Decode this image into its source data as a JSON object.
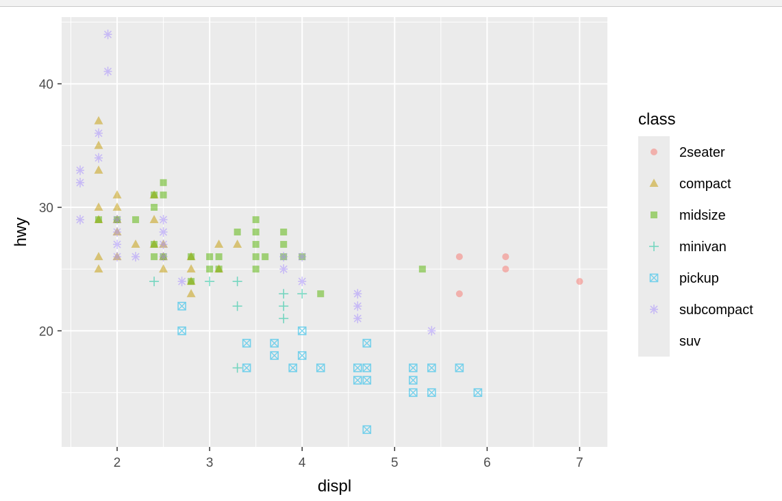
{
  "chart_data": {
    "type": "scatter",
    "xlabel": "displ",
    "ylabel": "hwy",
    "xlim": [
      1.4,
      7.3
    ],
    "ylim": [
      10.6,
      45.4
    ],
    "x_ticks": [
      2,
      3,
      4,
      5,
      6,
      7
    ],
    "x_tick_labels": [
      "2",
      "3",
      "4",
      "5",
      "6",
      "7"
    ],
    "y_ticks": [
      20,
      30,
      40
    ],
    "y_tick_labels": [
      "20",
      "30",
      "40"
    ],
    "grid": true,
    "point_alpha": 0.5,
    "legend": {
      "title": "class",
      "position": "right"
    },
    "series": [
      {
        "name": "2seater",
        "shape": "circle",
        "color": "#F8766D",
        "points": [
          [
            5.7,
            26
          ],
          [
            5.7,
            23
          ],
          [
            6.2,
            26
          ],
          [
            6.2,
            25
          ],
          [
            7.0,
            24
          ]
        ]
      },
      {
        "name": "compact",
        "shape": "triangle",
        "color": "#C49A00",
        "points": [
          [
            1.8,
            37
          ],
          [
            1.8,
            35
          ],
          [
            1.8,
            33
          ],
          [
            1.8,
            30
          ],
          [
            1.8,
            29
          ],
          [
            1.8,
            26
          ],
          [
            1.8,
            25
          ],
          [
            2.0,
            31
          ],
          [
            2.0,
            30
          ],
          [
            2.0,
            29
          ],
          [
            2.0,
            28
          ],
          [
            2.0,
            26
          ],
          [
            2.2,
            27
          ],
          [
            2.4,
            31
          ],
          [
            2.4,
            29
          ],
          [
            2.4,
            27
          ],
          [
            2.5,
            27
          ],
          [
            2.5,
            26
          ],
          [
            2.5,
            25
          ],
          [
            2.8,
            26
          ],
          [
            2.8,
            25
          ],
          [
            2.8,
            24
          ],
          [
            2.8,
            23
          ],
          [
            3.1,
            27
          ],
          [
            3.1,
            25
          ],
          [
            3.3,
            27
          ]
        ]
      },
      {
        "name": "midsize",
        "shape": "square",
        "color": "#53B400",
        "points": [
          [
            1.8,
            29
          ],
          [
            2.0,
            29
          ],
          [
            2.2,
            29
          ],
          [
            2.4,
            31
          ],
          [
            2.4,
            30
          ],
          [
            2.4,
            27
          ],
          [
            2.4,
            26
          ],
          [
            2.5,
            32
          ],
          [
            2.5,
            31
          ],
          [
            2.5,
            26
          ],
          [
            2.8,
            26
          ],
          [
            2.8,
            24
          ],
          [
            3.0,
            26
          ],
          [
            3.0,
            25
          ],
          [
            3.1,
            26
          ],
          [
            3.1,
            25
          ],
          [
            3.3,
            28
          ],
          [
            3.5,
            29
          ],
          [
            3.5,
            28
          ],
          [
            3.5,
            27
          ],
          [
            3.5,
            26
          ],
          [
            3.5,
            25
          ],
          [
            3.6,
            26
          ],
          [
            3.8,
            28
          ],
          [
            3.8,
            27
          ],
          [
            3.8,
            26
          ],
          [
            4.0,
            26
          ],
          [
            4.2,
            23
          ],
          [
            5.3,
            25
          ]
        ]
      },
      {
        "name": "minivan",
        "shape": "plus",
        "color": "#00C094",
        "points": [
          [
            2.4,
            24
          ],
          [
            3.0,
            24
          ],
          [
            3.3,
            24
          ],
          [
            3.3,
            22
          ],
          [
            3.3,
            17
          ],
          [
            3.8,
            23
          ],
          [
            3.8,
            22
          ],
          [
            3.8,
            21
          ],
          [
            4.0,
            23
          ]
        ]
      },
      {
        "name": "pickup",
        "shape": "square-cross",
        "color": "#00B6EB",
        "points": [
          [
            2.7,
            22
          ],
          [
            2.7,
            20
          ],
          [
            3.4,
            19
          ],
          [
            3.4,
            17
          ],
          [
            3.7,
            19
          ],
          [
            3.7,
            18
          ],
          [
            3.9,
            17
          ],
          [
            4.0,
            20
          ],
          [
            4.0,
            18
          ],
          [
            4.2,
            17
          ],
          [
            4.6,
            17
          ],
          [
            4.6,
            16
          ],
          [
            4.7,
            19
          ],
          [
            4.7,
            17
          ],
          [
            4.7,
            16
          ],
          [
            4.7,
            12
          ],
          [
            5.2,
            17
          ],
          [
            5.2,
            16
          ],
          [
            5.2,
            15
          ],
          [
            5.4,
            17
          ],
          [
            5.4,
            15
          ],
          [
            5.7,
            17
          ],
          [
            5.9,
            15
          ]
        ]
      },
      {
        "name": "subcompact",
        "shape": "asterisk",
        "color": "#A58AFF",
        "points": [
          [
            1.6,
            33
          ],
          [
            1.6,
            32
          ],
          [
            1.6,
            29
          ],
          [
            1.8,
            36
          ],
          [
            1.8,
            34
          ],
          [
            1.9,
            44
          ],
          [
            1.9,
            41
          ],
          [
            2.0,
            29
          ],
          [
            2.0,
            28
          ],
          [
            2.0,
            27
          ],
          [
            2.0,
            26
          ],
          [
            2.2,
            26
          ],
          [
            2.5,
            29
          ],
          [
            2.5,
            28
          ],
          [
            2.5,
            27
          ],
          [
            2.5,
            26
          ],
          [
            2.7,
            24
          ],
          [
            3.8,
            26
          ],
          [
            3.8,
            25
          ],
          [
            4.0,
            26
          ],
          [
            4.0,
            24
          ],
          [
            4.6,
            23
          ],
          [
            4.6,
            22
          ],
          [
            4.6,
            21
          ],
          [
            5.4,
            20
          ]
        ]
      },
      {
        "name": "suv",
        "shape": "none",
        "color": "#FB61D7",
        "points": []
      }
    ]
  }
}
